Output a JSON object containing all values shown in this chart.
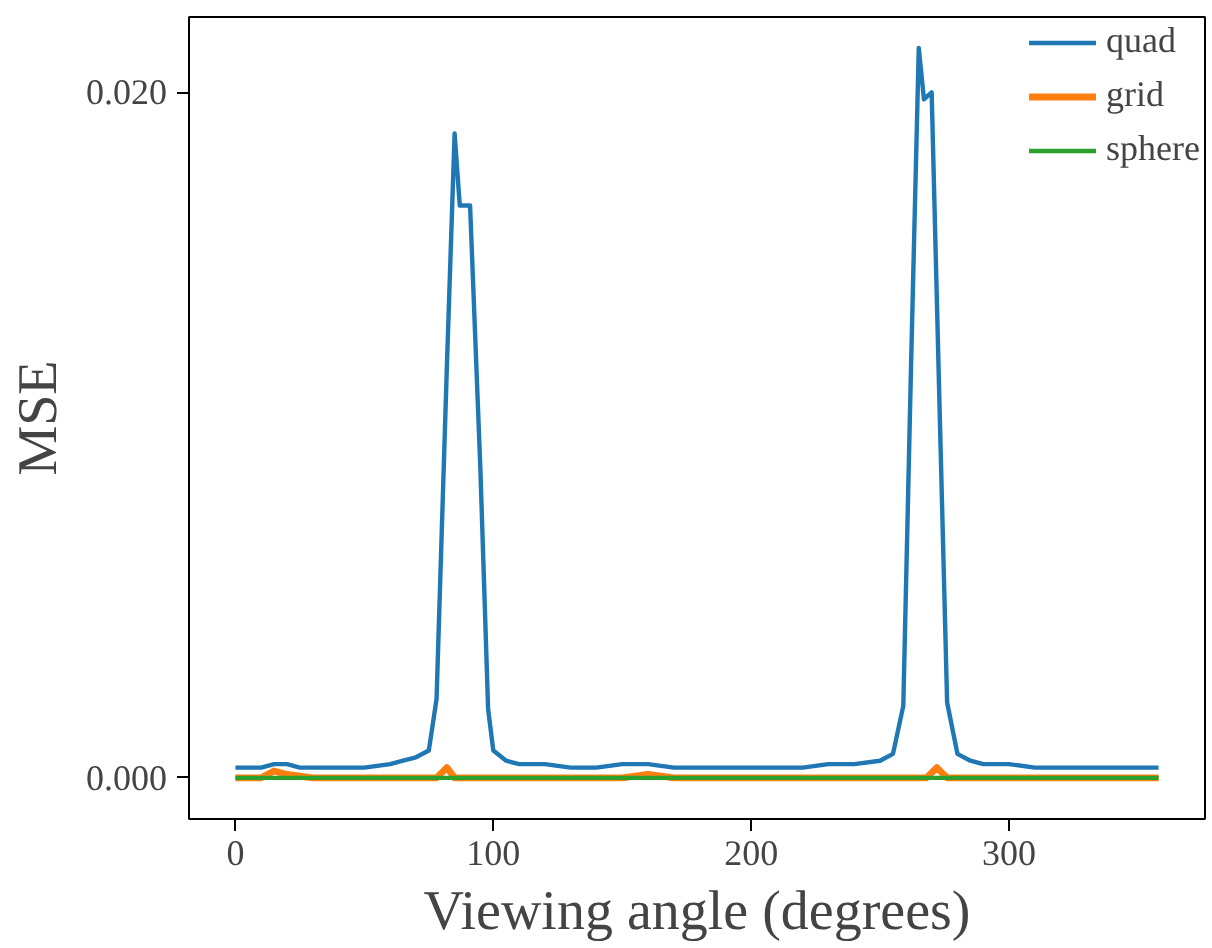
{
  "chart_data": {
    "type": "line",
    "xlabel": "Viewing angle (degrees)",
    "ylabel": "MSE",
    "xlim": [
      -18,
      376
    ],
    "ylim": [
      -0.0012,
      0.0222
    ],
    "xticks": [
      0,
      100,
      200,
      300
    ],
    "yticks": [
      {
        "value": 0,
        "label": "0.000"
      },
      {
        "value": 0.02,
        "label": "0.020"
      }
    ],
    "grid": false,
    "legend": "top right",
    "marker": "none",
    "line_style": "solid",
    "series": [
      {
        "name": "quad",
        "color": "#1f77b4",
        "x": [
          0,
          5,
          10,
          15,
          20,
          25,
          30,
          40,
          50,
          60,
          65,
          70,
          75,
          78,
          82,
          85,
          87,
          91,
          95,
          98,
          100,
          105,
          110,
          120,
          130,
          140,
          150,
          160,
          170,
          180,
          190,
          200,
          210,
          220,
          230,
          240,
          250,
          255,
          259,
          262,
          265,
          267,
          270,
          273,
          276,
          280,
          285,
          290,
          300,
          310,
          320,
          330,
          340,
          350,
          358
        ],
        "values": [
          0.0003,
          0.0003,
          0.0003,
          0.0004,
          0.0004,
          0.0003,
          0.0003,
          0.0003,
          0.0003,
          0.0004,
          0.0005,
          0.0006,
          0.0008,
          0.0023,
          0.012,
          0.0188,
          0.0167,
          0.0167,
          0.009,
          0.002,
          0.0008,
          0.0005,
          0.0004,
          0.0004,
          0.0003,
          0.0003,
          0.0004,
          0.0004,
          0.0003,
          0.0003,
          0.0003,
          0.0003,
          0.0003,
          0.0003,
          0.0004,
          0.0004,
          0.0005,
          0.0007,
          0.0021,
          0.012,
          0.0213,
          0.0198,
          0.02,
          0.011,
          0.0022,
          0.0007,
          0.0005,
          0.0004,
          0.0004,
          0.0003,
          0.0003,
          0.0003,
          0.0003,
          0.0003,
          0.0003
        ]
      },
      {
        "name": "grid",
        "color": "#ff7f0e",
        "x": [
          0,
          10,
          15,
          20,
          30,
          78,
          82,
          85,
          90,
          150,
          160,
          170,
          180,
          268,
          272,
          276,
          280,
          358
        ],
        "values": [
          0,
          0,
          0.0002,
          0.0001,
          0,
          0,
          0.0003,
          0,
          0,
          0,
          0.0001,
          0,
          0,
          0,
          0.0003,
          0,
          0,
          0
        ]
      },
      {
        "name": "sphere",
        "color": "#2ca02c",
        "x": [
          0,
          358
        ],
        "values": [
          0,
          0
        ]
      }
    ]
  }
}
